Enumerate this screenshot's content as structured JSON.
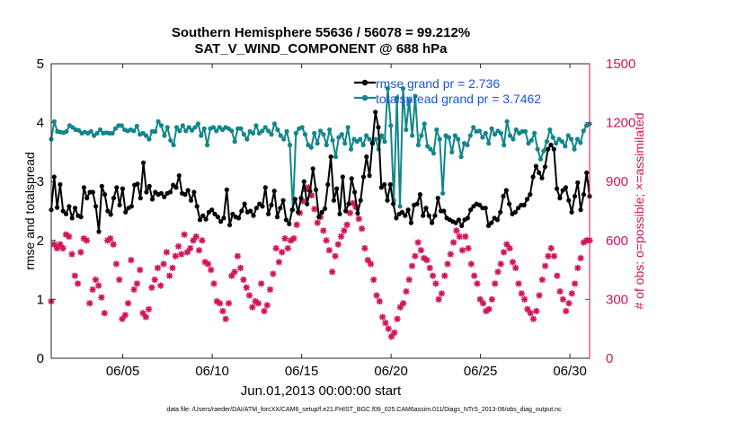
{
  "chart_data": {
    "type": "line",
    "title": "Southern Hemisphere 55636 / 56078 = 99.212%",
    "subtitle": "SAT_V_WIND_COMPONENT @ 688 hPa",
    "xlabel": "Jun.01,2013 00:00:00 start",
    "ylabel": "rmse and totalspread",
    "y2label": "# of obs: o=possible; ×=assimilated",
    "footnote": "data file: /Users/raeder/DAI/ATM_forcXX/CAM6_setup/f.e21.FHIST_BGC.f09_025.CAM6assim.011/Diags_NTrS_2013-06/obs_diag_output.nc",
    "xlim": [
      1,
      31.1
    ],
    "ylim": [
      0,
      5
    ],
    "y2lim": [
      0,
      1500
    ],
    "xticks": [
      5,
      10,
      15,
      20,
      25,
      30
    ],
    "xtick_labels": [
      "06/05",
      "06/10",
      "06/15",
      "06/20",
      "06/25",
      "06/30"
    ],
    "yticks": [
      "0",
      "1",
      "2",
      "3",
      "4",
      "5"
    ],
    "y2ticks": [
      "0",
      "300",
      "600",
      "900",
      "1200",
      "1500"
    ],
    "legend": [
      "rmse grand pr = 2.736",
      "totalspread grand pr = 3.7462"
    ],
    "colors": {
      "rmse": "#000000",
      "spread": "#12868a",
      "obs": "#d1145a",
      "legend_text": "#1a55d8"
    },
    "series": [
      {
        "name": "rmse",
        "values": [
          2.52,
          3.08,
          2.56,
          2.95,
          2.5,
          2.45,
          2.58,
          2.38,
          2.55,
          2.42,
          2.4,
          2.9,
          2.72,
          2.82,
          2.82,
          2.58,
          2.15,
          2.92,
          2.78,
          2.5,
          2.44,
          2.72,
          2.9,
          2.6,
          2.88,
          2.48,
          2.55,
          2.58,
          2.94,
          2.96,
          2.72,
          3.32,
          2.82,
          2.92,
          2.7,
          2.82,
          2.78,
          2.8,
          2.74,
          2.8,
          2.82,
          2.94,
          2.9,
          3.1,
          2.8,
          2.78,
          2.85,
          2.68,
          2.82,
          2.58,
          2.35,
          2.42,
          2.36,
          2.48,
          2.52,
          2.45,
          2.4,
          2.32,
          2.38,
          2.86,
          2.26,
          2.45,
          2.4,
          2.38,
          2.5,
          2.62,
          2.48,
          2.5,
          2.42,
          2.55,
          2.62,
          2.58,
          2.9,
          2.45,
          2.6,
          2.84,
          2.4,
          2.55,
          2.68,
          2.35,
          2.28,
          2.52,
          2.7,
          2.48,
          2.72,
          3.0,
          2.62,
          2.84,
          3.22,
          2.86,
          2.4,
          2.48,
          2.54,
          2.95,
          3.42,
          2.68,
          2.88,
          2.45,
          3.08,
          2.5,
          2.62,
          3.05,
          2.82,
          2.46,
          2.68,
          3.08,
          3.42,
          3.1,
          3.65,
          4.18,
          3.92,
          2.9,
          2.95,
          2.68,
          2.95,
          2.62,
          2.38,
          2.45,
          2.48,
          2.42,
          2.52,
          2.3,
          2.6,
          2.62,
          2.78,
          2.42,
          2.55,
          2.42,
          2.3,
          2.42,
          2.72,
          2.5,
          2.5,
          2.38,
          2.35,
          2.32,
          2.3,
          2.35,
          2.25,
          2.35,
          2.38,
          2.52,
          2.58,
          2.62,
          2.6,
          2.55,
          2.55,
          2.25,
          2.3,
          2.38,
          2.35,
          2.48,
          2.75,
          2.85,
          2.62,
          2.45,
          2.48,
          2.55,
          2.6,
          2.6,
          2.7,
          2.78,
          3.08,
          3.26,
          3.15,
          3.06,
          3.25,
          3.55,
          3.62,
          3.55,
          2.88,
          2.72,
          2.85,
          2.9,
          2.68,
          2.48,
          2.75,
          2.98,
          2.52,
          2.78,
          3.15,
          2.75
        ]
      },
      {
        "name": "totalspread",
        "values": [
          3.72,
          4.02,
          3.85,
          3.84,
          3.83,
          3.85,
          3.95,
          3.92,
          3.88,
          3.87,
          3.82,
          3.84,
          3.82,
          3.85,
          3.78,
          3.82,
          3.88,
          3.82,
          3.83,
          3.82,
          3.82,
          3.9,
          3.95,
          3.95,
          3.88,
          3.86,
          3.88,
          3.86,
          3.94,
          3.8,
          3.82,
          3.78,
          3.72,
          3.85,
          3.85,
          4.02,
          3.95,
          3.78,
          3.92,
          3.7,
          3.62,
          3.92,
          3.86,
          3.95,
          3.86,
          3.92,
          3.87,
          3.92,
          3.98,
          3.78,
          3.9,
          3.62,
          3.9,
          3.92,
          3.86,
          3.92,
          3.88,
          3.92,
          3.9,
          3.86,
          3.68,
          3.9,
          3.9,
          3.8,
          3.72,
          3.85,
          3.82,
          3.95,
          3.82,
          3.86,
          3.92,
          3.86,
          3.8,
          3.98,
          3.88,
          3.78,
          3.72,
          3.85,
          3.62,
          2.52,
          3.82,
          3.9,
          3.92,
          3.8,
          3.62,
          3.58,
          3.82,
          3.65,
          3.86,
          3.8,
          3.62,
          3.88,
          3.7,
          3.42,
          3.75,
          3.8,
          3.65,
          3.92,
          3.55,
          3.72,
          3.68,
          3.72,
          3.62,
          3.78,
          3.72,
          3.65,
          3.72,
          3.55,
          3.78,
          3.68,
          4.58,
          3.95,
          2.68,
          4.42,
          2.58,
          4.58,
          3.88,
          4.38,
          3.78,
          4.45,
          3.62,
          3.78,
          3.98,
          3.6,
          3.55,
          3.48,
          3.88,
          3.72,
          2.8,
          3.78,
          3.75,
          3.5,
          3.78,
          3.72,
          3.42,
          3.65,
          3.62,
          3.78,
          3.92,
          3.85,
          3.86,
          3.75,
          3.82,
          3.65,
          3.9,
          3.8,
          3.86,
          3.82,
          3.62,
          4.02,
          3.78,
          3.72,
          3.88,
          3.82,
          3.85,
          3.85,
          3.65,
          3.7,
          3.82,
          3.55,
          3.38,
          3.52,
          3.68,
          3.88,
          3.75,
          3.65,
          3.72,
          3.68,
          3.6,
          3.78,
          3.72,
          3.55,
          3.72,
          3.66,
          3.86,
          3.95,
          3.98
        ]
      },
      {
        "name": "assimilated_obs",
        "values": [
          290,
          580,
          560,
          580,
          560,
          630,
          620,
          530,
          420,
          380,
          540,
          610,
          600,
          280,
          350,
          400,
          370,
          310,
          230,
          600,
          610,
          580,
          480,
          400,
          200,
          220,
          280,
          500,
          350,
          380,
          450,
          230,
          210,
          250,
          360,
          400,
          460,
          370,
          480,
          540,
          420,
          460,
          520,
          570,
          530,
          630,
          540,
          560,
          600,
          620,
          550,
          600,
          490,
          480,
          450,
          380,
          290,
          280,
          240,
          200,
          280,
          420,
          440,
          520,
          460,
          400,
          360,
          320,
          260,
          290,
          280,
          380,
          240,
          270,
          350,
          430,
          560,
          490,
          540,
          610,
          560,
          600,
          610,
          680,
          740,
          800,
          860,
          870,
          830,
          760,
          690,
          720,
          650,
          600,
          550,
          440,
          520,
          580,
          620,
          650,
          680,
          740,
          790,
          770,
          710,
          660,
          560,
          500,
          480,
          400,
          320,
          290,
          210,
          180,
          150,
          110,
          130,
          200,
          260,
          280,
          340,
          400,
          470,
          520,
          590,
          550,
          510,
          500,
          460,
          420,
          380,
          300,
          330,
          420,
          480,
          530,
          590,
          650,
          620,
          550,
          620,
          560,
          480,
          420,
          380,
          300,
          280,
          240,
          250,
          300,
          380,
          440,
          480,
          540,
          580,
          560,
          490,
          460,
          380,
          330,
          300,
          250,
          230,
          200,
          240,
          320,
          400,
          470,
          520,
          560,
          520,
          420,
          340,
          300,
          240,
          280,
          330,
          380,
          460,
          510,
          590,
          600,
          600
        ]
      }
    ]
  }
}
